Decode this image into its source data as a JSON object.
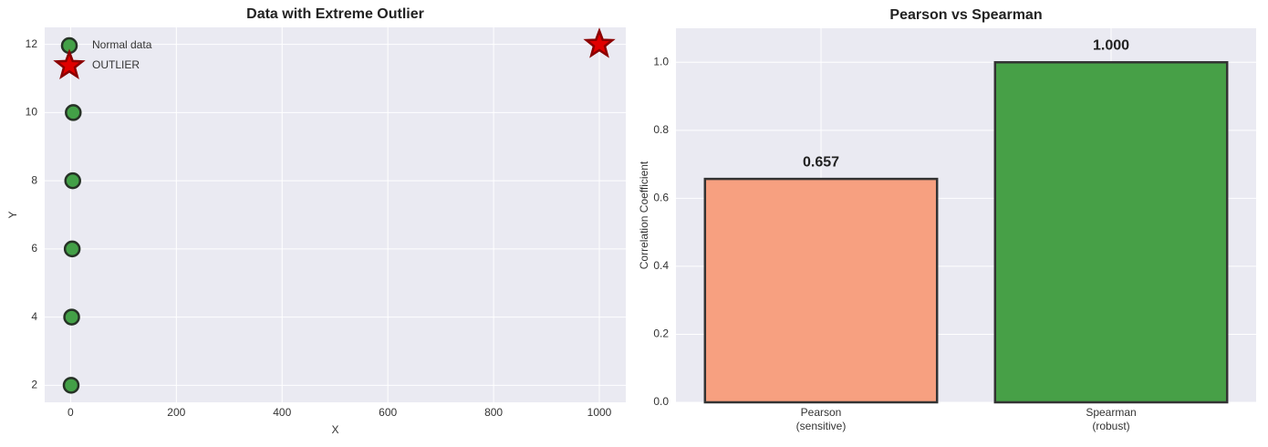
{
  "chart_data": [
    {
      "type": "scatter",
      "title": "Data with Extreme Outlier",
      "x_label": "X",
      "y_label": "Y",
      "series": [
        {
          "name": "Normal data",
          "color": "#43a047",
          "marker": "circle",
          "x": [
            1,
            2,
            3,
            4,
            5
          ],
          "values": [
            2,
            4,
            6,
            8,
            10
          ]
        },
        {
          "name": "OUTLIER",
          "color": "#e00000",
          "marker": "star",
          "x": [
            1000
          ],
          "values": [
            12
          ]
        }
      ],
      "xlim": [
        -49,
        1050
      ],
      "xticks": [
        0,
        200,
        400,
        600,
        800,
        1000
      ],
      "ylim": [
        1.5,
        12.5
      ],
      "yticks": [
        2,
        4,
        6,
        8,
        10,
        12
      ],
      "grid": true,
      "legend": "upper left"
    },
    {
      "type": "bar",
      "title": "Pearson vs Spearman",
      "y_label": "Correlation Coefficient",
      "categories": [
        "Pearson\n(sensitive)",
        "Spearman\n(robust)"
      ],
      "values": [
        0.657,
        1
      ],
      "value_labels": [
        "0.657",
        "1.000"
      ],
      "colors": [
        "#f7a080",
        "#47a047"
      ],
      "ylim": [
        0,
        1.1
      ],
      "yticks": [
        {
          "value": 0,
          "label": "0.0"
        },
        {
          "value": 0.2,
          "label": "0.2"
        },
        {
          "value": 0.4,
          "label": "0.4"
        },
        {
          "value": 0.6,
          "label": "0.6"
        },
        {
          "value": 0.8,
          "label": "0.8"
        },
        {
          "value": 1,
          "label": "1.0"
        }
      ],
      "grid": true
    }
  ]
}
